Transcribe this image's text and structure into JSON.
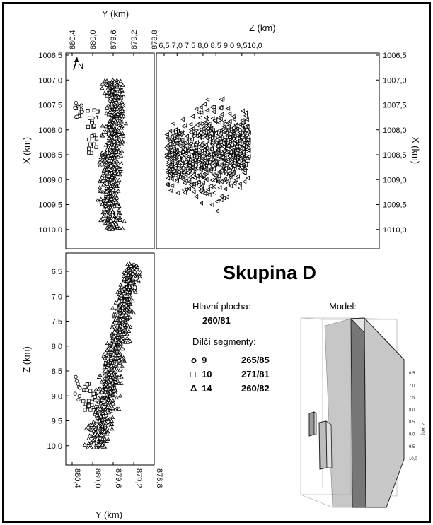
{
  "chart_data": [
    {
      "type": "scatter",
      "panel": "map-view",
      "xlabel": "Z (km)",
      "ylabel": "X (km)",
      "x_ticks": [
        "6,5",
        "7,0",
        "7,5",
        "8,0",
        "8,5",
        "9,0",
        "9,5",
        "10,0"
      ],
      "y_ticks": [
        "1006,5",
        "1007,0",
        "1007,5",
        "1008,0",
        "1008,5",
        "1009,0",
        "1009,5",
        "1010,0"
      ],
      "xlim": [
        6.1,
        10.45
      ],
      "ylim": [
        1006.5,
        1010.4
      ],
      "marker": "left-triangle",
      "series": [
        {
          "name": "14",
          "approx_extent": {
            "z": [
              6.55,
              9.85
            ],
            "x": [
              1006.95,
              1010.0
            ]
          },
          "count_estimate": 1200
        }
      ]
    },
    {
      "type": "scatter",
      "panel": "x-vs-y",
      "xlabel": "Y (km)",
      "ylabel": "X (km)",
      "x_ticks": [
        "880,4",
        "880,0",
        "879,6",
        "879,2",
        "878,8"
      ],
      "y_ticks": [
        "1006,5",
        "1007,0",
        "1007,5",
        "1008,0",
        "1008,5",
        "1009,0",
        "1009,5",
        "1010,0"
      ],
      "xlim": [
        880.5,
        878.75
      ],
      "ylim": [
        1006.5,
        1010.4
      ],
      "series": [
        {
          "name": "9",
          "marker": "circle",
          "approx_extent": {
            "y": [
              880.35,
              880.15
            ],
            "x": [
              1007.5,
              1007.8
            ]
          }
        },
        {
          "name": "10",
          "marker": "square",
          "approx_extent": {
            "y": [
              880.1,
              879.9
            ],
            "x": [
              1007.6,
              1008.5
            ]
          }
        },
        {
          "name": "14",
          "marker": "triangle",
          "approx_extent": {
            "y": [
              880.15,
              879.05
            ],
            "x": [
              1007.0,
              1010.0
            ]
          }
        }
      ]
    },
    {
      "type": "scatter",
      "panel": "z-vs-y",
      "xlabel": "Y (km)",
      "ylabel": "Z (km)",
      "x_ticks": [
        "880,4",
        "880,0",
        "879,6",
        "879,2",
        "878,8"
      ],
      "y_ticks": [
        "6,5",
        "7,0",
        "7,5",
        "8,0",
        "8,5",
        "9,0",
        "9,5",
        "10,0"
      ],
      "xlim": [
        880.5,
        878.75
      ],
      "ylim": [
        6.05,
        10.45
      ],
      "series": [
        {
          "name": "9",
          "marker": "circle",
          "approx_extent": {
            "y": [
              880.35,
              880.25
            ],
            "z": [
              8.6,
              9.1
            ]
          }
        },
        {
          "name": "10",
          "marker": "square",
          "approx_extent": {
            "y": [
              880.2,
              879.95
            ],
            "z": [
              8.75,
              9.3
            ]
          }
        },
        {
          "name": "14",
          "marker": "triangle",
          "approx_extent": {
            "y": [
              880.2,
              878.95
            ],
            "z": [
              6.3,
              10.1
            ]
          }
        }
      ]
    }
  ],
  "title": "Skupina D",
  "main_plane_label": "Hlavní plocha:",
  "main_plane_value": "260/81",
  "segments_label": "Dílčí segmenty:",
  "segments": [
    {
      "symbol": "o",
      "id": "9",
      "value": "265/85"
    },
    {
      "symbol": "□",
      "id": "10",
      "value": "271/81"
    },
    {
      "symbol": "Δ",
      "id": "14",
      "value": "260/82"
    }
  ],
  "model_label": "Model:",
  "model_axis": {
    "label": "Z (km)",
    "ticks": [
      "6,5",
      "7,0",
      "7,5",
      "8,0",
      "8,5",
      "9,0",
      "9,5",
      "10,0"
    ]
  },
  "north_label": "N",
  "colors": {
    "marker": "#000000",
    "background": "#ffffff",
    "model_face": "#9a9a9a",
    "model_side": "#d0d0d0"
  }
}
